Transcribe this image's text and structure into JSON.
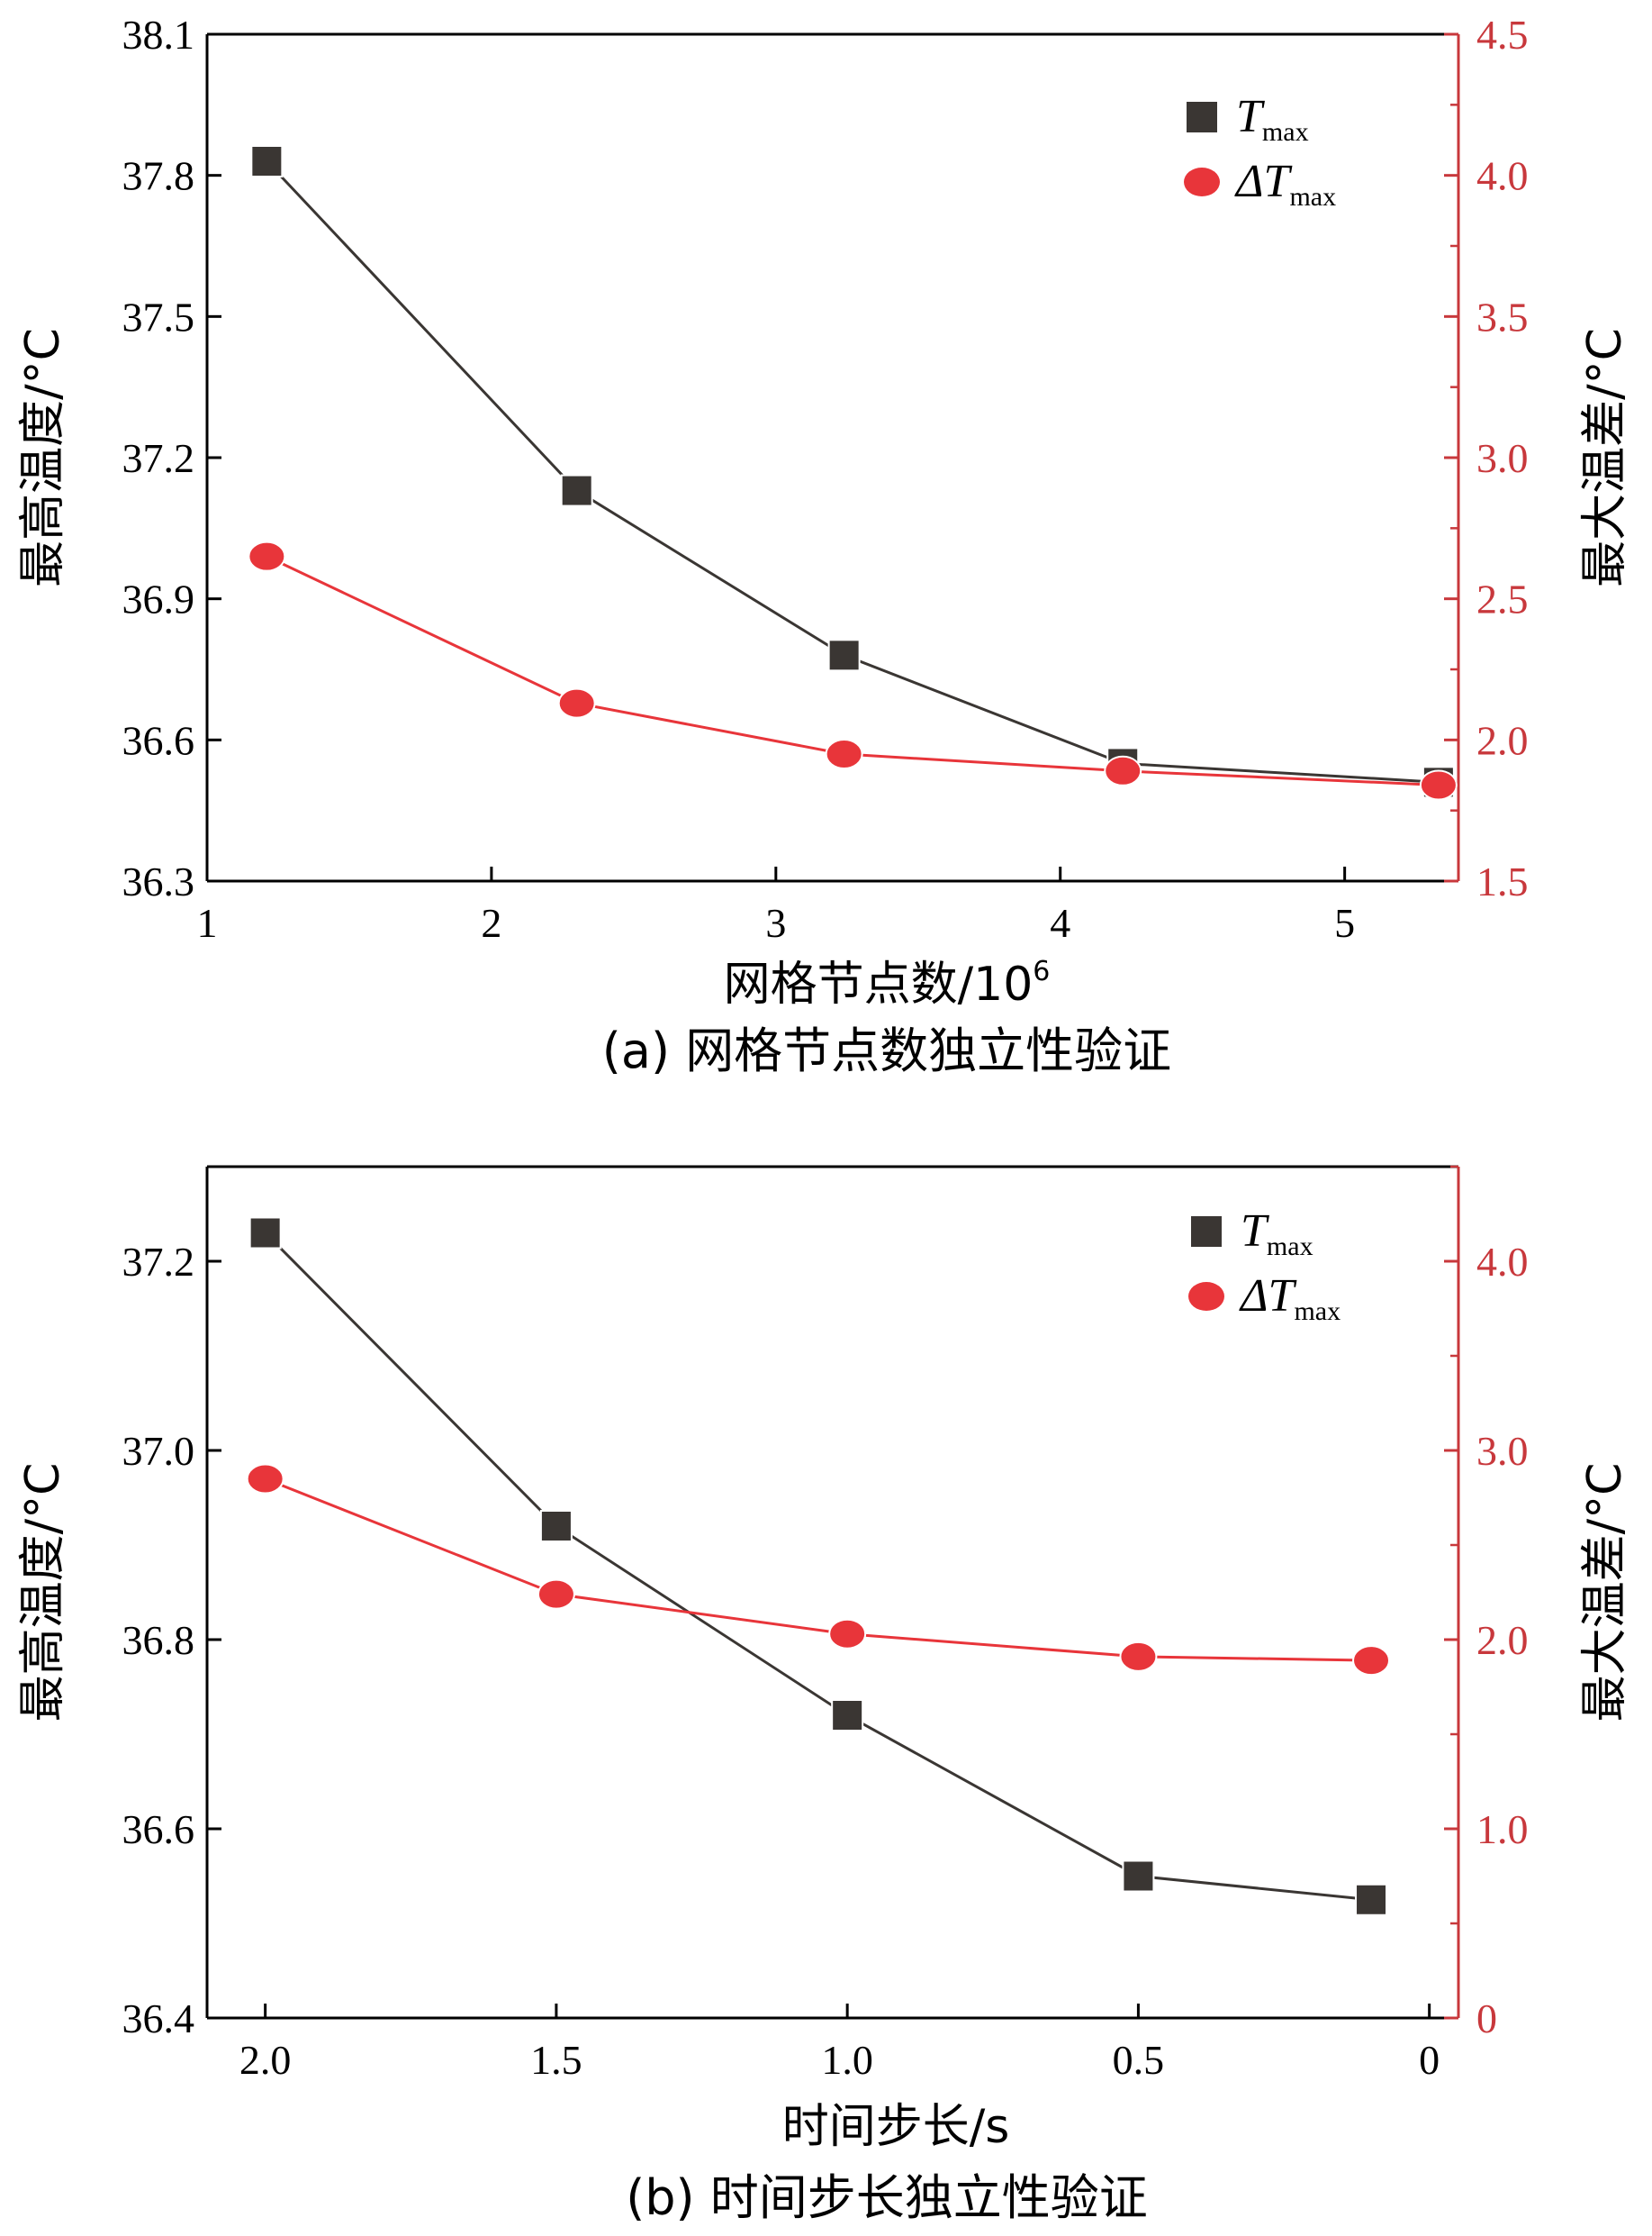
{
  "colors": {
    "black": "#3a3633",
    "red": "#e8353a",
    "axis_red": "#c8383c",
    "line_red": "#e8353a"
  },
  "chart_data": [
    {
      "type": "line",
      "caption": "(a) 网格节点数独立性验证",
      "xlabel": "网格节点数/10",
      "xlabel_sup": "6",
      "ylabel_left": "最高温度/°C",
      "ylabel_right": "最大温差/°C",
      "xlim": [
        1,
        5.4
      ],
      "xticks": [
        1,
        2,
        3,
        4,
        5
      ],
      "xtick_labels": [
        "1",
        "2",
        "3",
        "4",
        "5"
      ],
      "ylim_left": [
        36.3,
        38.1
      ],
      "yticks_left": [
        36.3,
        36.6,
        36.9,
        37.2,
        37.5,
        37.8,
        38.1
      ],
      "ytick_labels_left": [
        "36.3",
        "36.6",
        "36.9",
        "37.2",
        "37.5",
        "37.8",
        "38.1"
      ],
      "ylim_right": [
        1.5,
        4.5
      ],
      "yticks_right": [
        1.5,
        2.0,
        2.5,
        3.0,
        3.5,
        4.0,
        4.5
      ],
      "ytick_labels_right": [
        "1.5",
        "2.0",
        "2.5",
        "3.0",
        "3.5",
        "4.0",
        "4.5"
      ],
      "legend_position": "top-right",
      "series": [
        {
          "name": "T",
          "name_sub": "max",
          "axis": "left",
          "marker": "square",
          "x": [
            1.21,
            2.3,
            3.24,
            4.22,
            5.33
          ],
          "y": [
            37.83,
            37.13,
            36.78,
            36.55,
            36.51
          ]
        },
        {
          "name": "ΔT",
          "name_sub": "max",
          "axis": "right",
          "marker": "circle",
          "x": [
            1.21,
            2.3,
            3.24,
            4.22,
            5.33
          ],
          "y": [
            2.65,
            2.13,
            1.95,
            1.89,
            1.84
          ]
        }
      ]
    },
    {
      "type": "line",
      "caption": "(b) 时间步长独立性验证",
      "xlabel": "时间步长/s",
      "ylabel_left": "最高温度/°C",
      "ylabel_right": "最大温差/°C",
      "x_reversed": true,
      "xlim": [
        2.1,
        -0.05
      ],
      "xticks": [
        2.0,
        1.5,
        1.0,
        0.5,
        0
      ],
      "xtick_labels": [
        "2.0",
        "1.5",
        "1.0",
        "0.5",
        "0"
      ],
      "ylim_left": [
        36.4,
        37.3
      ],
      "yticks_left": [
        36.4,
        36.6,
        36.8,
        37.0,
        37.2
      ],
      "ytick_labels_left": [
        "36.4",
        "36.6",
        "36.8",
        "37.0",
        "37.2"
      ],
      "ylim_right": [
        0,
        4.5
      ],
      "yticks_right": [
        0,
        1.0,
        2.0,
        3.0,
        4.0
      ],
      "ytick_labels_right": [
        "0",
        "1.0",
        "2.0",
        "3.0",
        "4.0"
      ],
      "legend_position": "top-right",
      "series": [
        {
          "name": "T",
          "name_sub": "max",
          "axis": "left",
          "marker": "square",
          "x": [
            2.0,
            1.5,
            1.0,
            0.5,
            0.1
          ],
          "y": [
            37.23,
            36.92,
            36.72,
            36.55,
            36.525
          ]
        },
        {
          "name": "ΔT",
          "name_sub": "max",
          "axis": "right",
          "marker": "circle",
          "x": [
            2.0,
            1.5,
            1.0,
            0.5,
            0.1
          ],
          "y": [
            2.85,
            2.24,
            2.03,
            1.91,
            1.89
          ]
        }
      ]
    }
  ]
}
